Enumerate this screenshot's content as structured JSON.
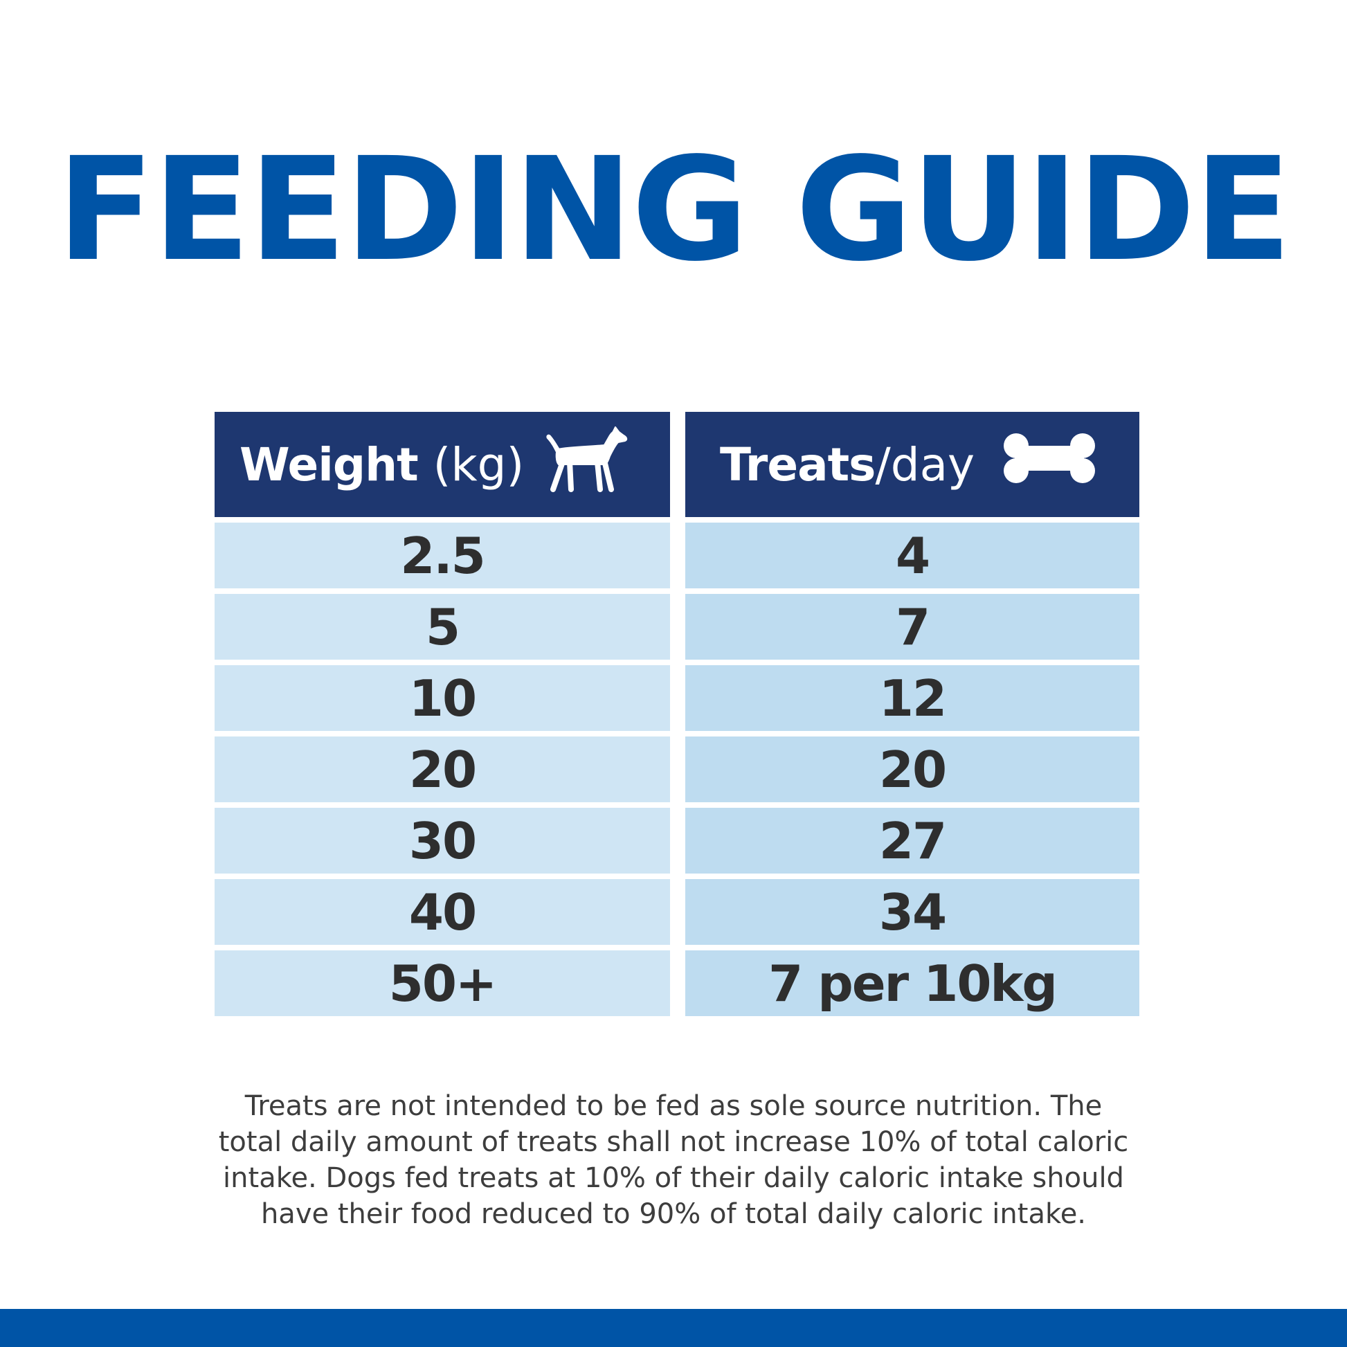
{
  "title": "FEEDING GUIDE",
  "table": {
    "headers": {
      "weight": {
        "bold": "Weight",
        "unit": "(kg)",
        "icon": "dog-icon"
      },
      "treats": {
        "bold": "Treats",
        "slash": "/day",
        "icon": "bone-icon"
      }
    },
    "rows": [
      {
        "weight": "2.5",
        "treats": "4"
      },
      {
        "weight": "5",
        "treats": "7"
      },
      {
        "weight": "10",
        "treats": "12"
      },
      {
        "weight": "20",
        "treats": "20"
      },
      {
        "weight": "30",
        "treats": "27"
      },
      {
        "weight": "40",
        "treats": "34"
      },
      {
        "weight": "50+",
        "treats": "7 per 10kg"
      }
    ]
  },
  "footnote": {
    "lines": [
      "Treats are not intended to be fed as sole source nutrition. The",
      "total daily amount of treats shall not increase 10% of total caloric",
      "intake. Dogs fed treats at 10% of their daily caloric intake should",
      "have their food reduced to 90% of total daily caloric intake."
    ]
  },
  "colors": {
    "brand_blue": "#0054a6",
    "header_navy": "#1e3770",
    "row_light": "#cfe5f4",
    "row_mid": "#bedcf0",
    "text_dark": "#2e2e2e"
  }
}
